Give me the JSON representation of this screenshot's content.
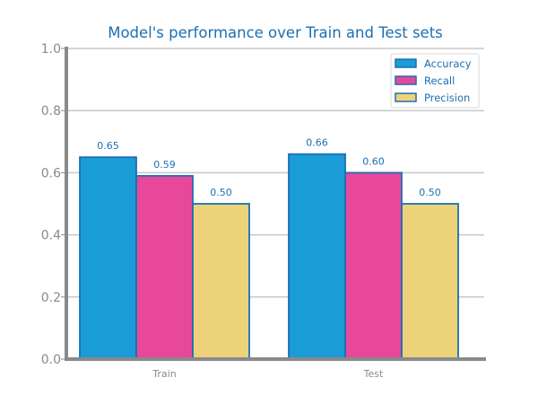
{
  "chart_data": {
    "type": "bar",
    "title": "Model's performance over Train and Test sets",
    "xlabel": "",
    "ylabel": "",
    "categories": [
      "Train",
      "Test"
    ],
    "series": [
      {
        "name": "Accuracy",
        "values": [
          0.65,
          0.66
        ],
        "labels": [
          "0.65",
          "0.66"
        ],
        "color": "#1a9cd6"
      },
      {
        "name": "Recall",
        "values": [
          0.59,
          0.6
        ],
        "labels": [
          "0.59",
          "0.60"
        ],
        "color": "#e8489a"
      },
      {
        "name": "Precision",
        "values": [
          0.5,
          0.5
        ],
        "labels": [
          "0.50",
          "0.50"
        ],
        "color": "#ecd37a"
      }
    ],
    "ylim": [
      0,
      1.0
    ],
    "yticks": [
      "0.0",
      "0.2",
      "0.4",
      "0.6",
      "0.8",
      "1.0"
    ],
    "grid": "horizontal",
    "legend_position": "top-right",
    "bar_edge_color": "#1c6fb3",
    "axis_color": "#8a8a8a",
    "grid_color": "#c8c8c8"
  }
}
